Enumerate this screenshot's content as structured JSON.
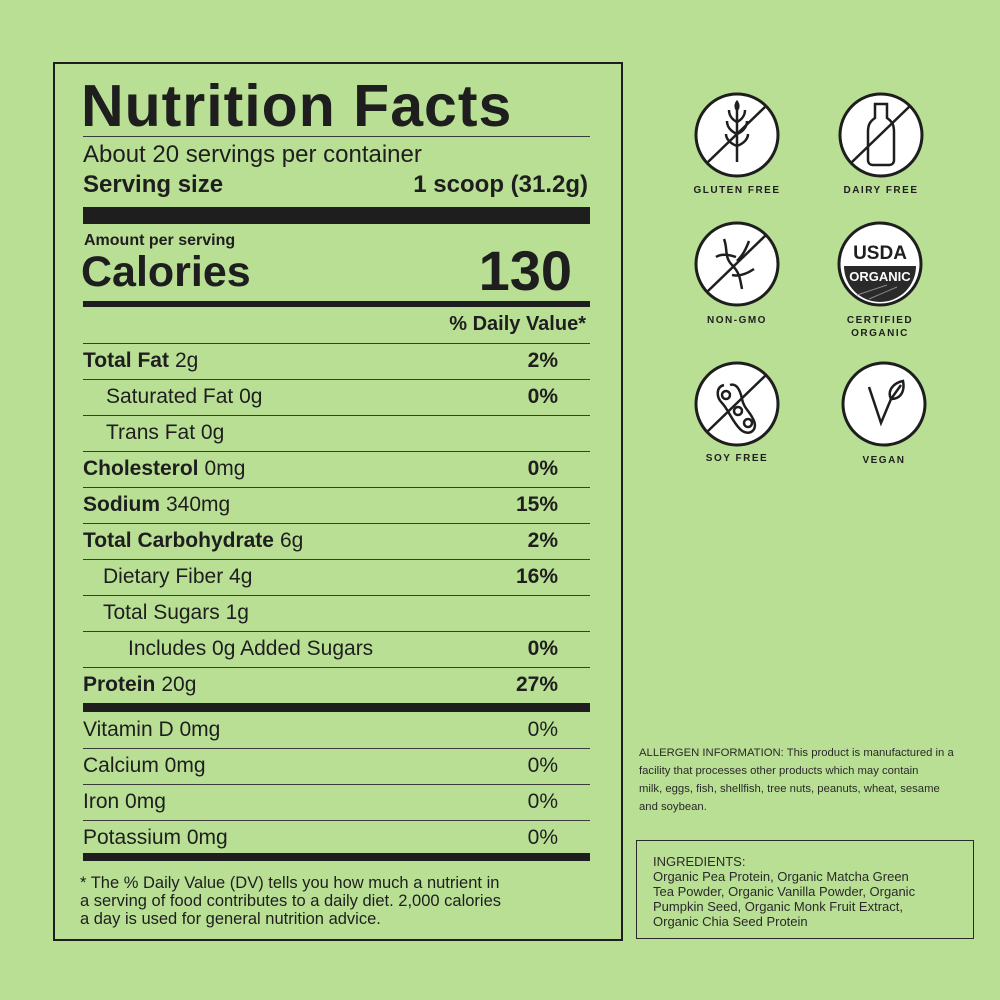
{
  "label": {
    "title": "Nutrition Facts",
    "servings": "About 20 servings per container",
    "serving_size_label": "Serving size",
    "serving_size_value": "1 scoop (31.2g)",
    "amount_per_serving": "Amount per serving",
    "calories_label": "Calories",
    "calories_value": "130",
    "dv_header": "% Daily Value*",
    "nutrients": [
      {
        "name": "Total Fat",
        "amount": "2g",
        "dv": "2%"
      },
      {
        "name": "Saturated Fat 0g",
        "amount": "",
        "dv": "0%"
      },
      {
        "name": "Trans Fat 0g",
        "amount": "",
        "dv": ""
      },
      {
        "name": "Cholesterol",
        "amount": "0mg",
        "dv": "0%"
      },
      {
        "name": "Sodium",
        "amount": "340mg",
        "dv": "15%"
      },
      {
        "name": "Total Carbohydrate",
        "amount": "6g",
        "dv": "2%"
      },
      {
        "name": "Dietary Fiber 4g",
        "amount": "",
        "dv": "16%"
      },
      {
        "name": "Total Sugars  1g",
        "amount": "",
        "dv": ""
      },
      {
        "name": "Includes 0g Added Sugars",
        "amount": "",
        "dv": "0%"
      },
      {
        "name": "Protein",
        "amount": "20g",
        "dv": "27%"
      }
    ],
    "vitamins": [
      {
        "name": "Vitamin D 0mg",
        "dv": "0%"
      },
      {
        "name": "Calcium 0mg",
        "dv": "0%"
      },
      {
        "name": "Iron 0mg",
        "dv": "0%"
      },
      {
        "name": "Potassium 0mg",
        "dv": "0%"
      }
    ],
    "footnote": [
      "* The % Daily Value (DV) tells you how much a nutrient in",
      "a serving of food contributes to a daily diet. 2,000 calories",
      "a day is used for general nutrition advice."
    ]
  },
  "badges": [
    {
      "icon": "wheat-crossed-icon",
      "label": "GLUTEN FREE"
    },
    {
      "icon": "bottle-crossed-icon",
      "label": "DAIRY FREE"
    },
    {
      "icon": "dna-crossed-icon",
      "label": "NON-GMO"
    },
    {
      "icon": "usda-organic-seal",
      "label": "CERTIFIED",
      "label2": "ORGANIC",
      "seal_top": "USDA",
      "seal_band": "ORGANIC"
    },
    {
      "icon": "soybean-crossed-icon",
      "label": "SOY FREE"
    },
    {
      "icon": "vegan-leaf-icon",
      "label": "VEGAN"
    }
  ],
  "allergen": [
    "ALLERGEN INFORMATION: This product is manufactured in a",
    "facility that processes other products which may contain",
    "milk, eggs, fish, shellfish, tree nuts, peanuts, wheat, sesame",
    "and soybean."
  ],
  "ingredients": {
    "title": "INGREDIENTS:",
    "lines": [
      "Organic Pea Protein, Organic Matcha Green",
      "Tea Powder, Organic Vanilla Powder, Organic",
      "Pumpkin Seed, Organic Monk Fruit Extract,",
      "Organic Chia Seed Protein"
    ]
  },
  "colors": {
    "background": "#b9df95",
    "ink": "#1e1e1e"
  }
}
